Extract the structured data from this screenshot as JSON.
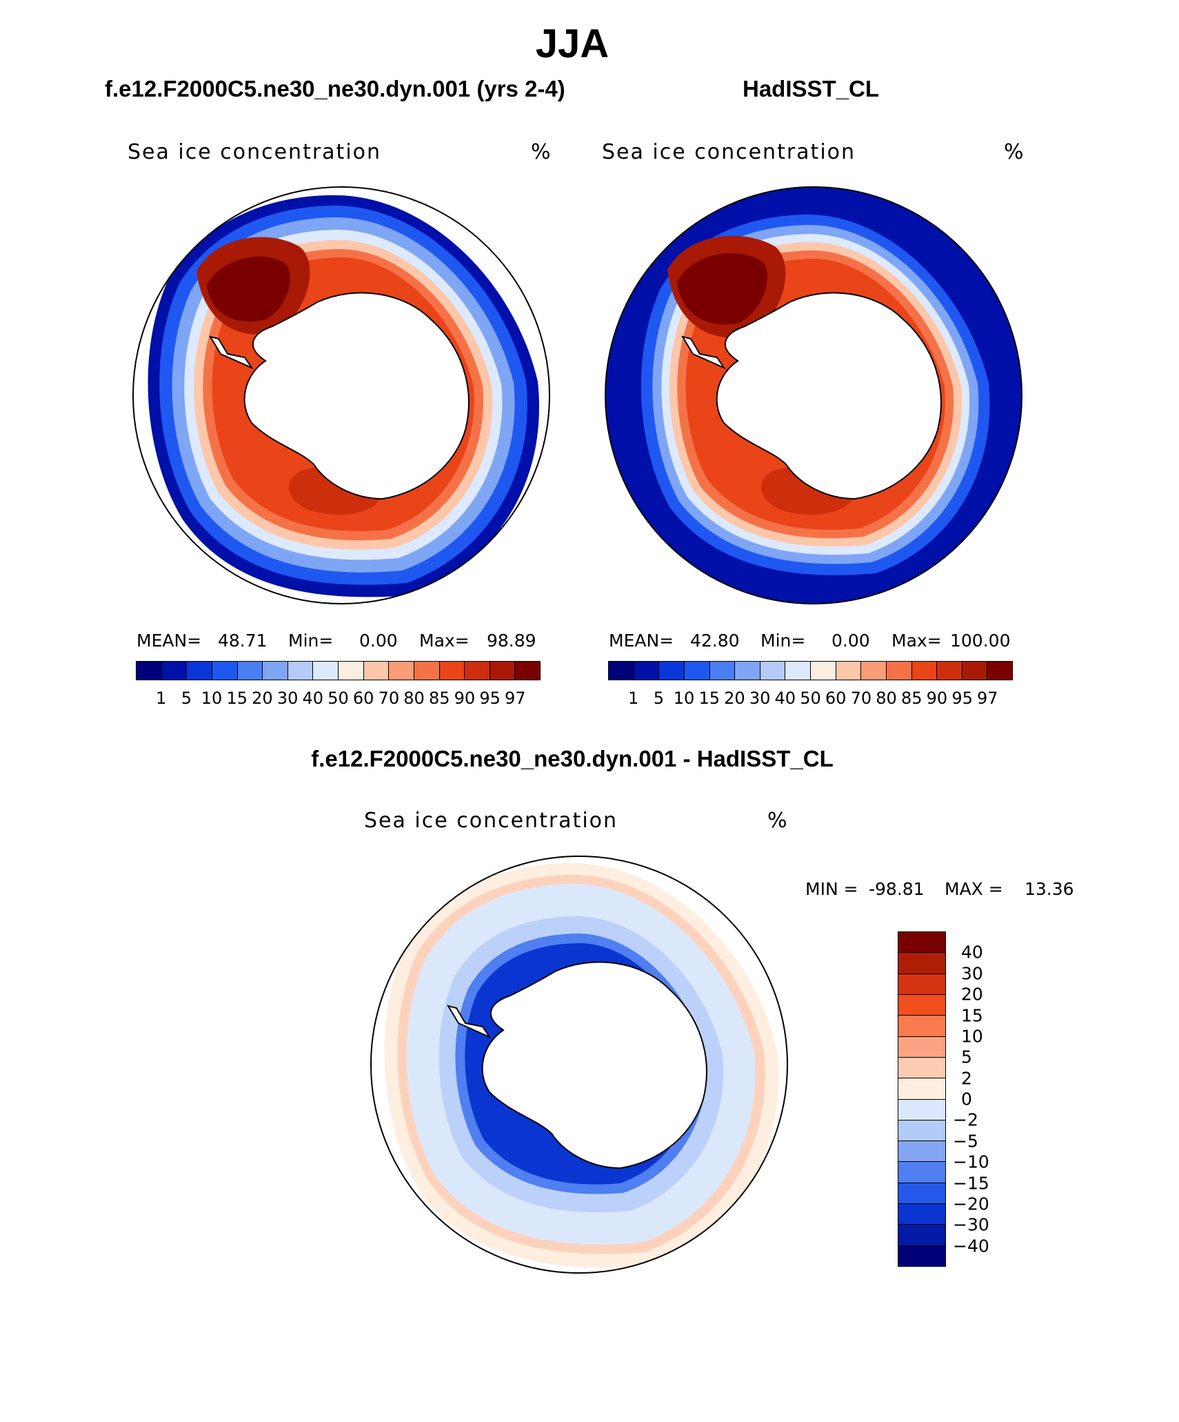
{
  "title": "JJA",
  "panels": [
    {
      "id": "model",
      "title": "f.e12.F2000C5.ne30_ne30.dyn.001 (yrs 2-4)",
      "variable": "Sea ice concentration",
      "units": "%",
      "mean_label": "MEAN=",
      "mean": "48.71",
      "min_label": "Min=",
      "min": "0.00",
      "max_label": "Max=",
      "max": "98.89"
    },
    {
      "id": "obs",
      "title": "HadISST_CL",
      "variable": "Sea ice concentration",
      "units": "%",
      "mean_label": "MEAN=",
      "mean": "42.80",
      "min_label": "Min=",
      "min": "0.00",
      "max_label": "Max=",
      "max": "100.00"
    }
  ],
  "abs_colorbar": {
    "levels": [
      "1",
      "5",
      "10",
      "15",
      "20",
      "30",
      "40",
      "50",
      "60",
      "70",
      "80",
      "85",
      "90",
      "95",
      "97"
    ],
    "colors": [
      "#00007a",
      "#0010a8",
      "#0a35d8",
      "#1f58f0",
      "#4a7ef2",
      "#7fa5f5",
      "#b6cbf8",
      "#dde9fc",
      "#fdeee2",
      "#fcc7aa",
      "#f99c78",
      "#f57248",
      "#ea4419",
      "#cd2f0c",
      "#a81a05",
      "#7a0000"
    ]
  },
  "diff_panel": {
    "title": "f.e12.F2000C5.ne30_ne30.dyn.001 - HadISST_CL",
    "variable": "Sea ice concentration",
    "units": "%",
    "min_label": "MIN =",
    "min": "-98.81",
    "max_label": "MAX =",
    "max": "13.36",
    "levels": [
      "40",
      "30",
      "20",
      "15",
      "10",
      "5",
      "2",
      "0",
      "-2",
      "-5",
      "-10",
      "-15",
      "-20",
      "-30",
      "-40"
    ],
    "colors": [
      "#7a0000",
      "#b01d05",
      "#d43411",
      "#f24f1e",
      "#fb7b50",
      "#fba383",
      "#fccbb4",
      "#fdeee0",
      "#dbe8fc",
      "#b3cbf8",
      "#85a6f4",
      "#4f7ff0",
      "#2458ea",
      "#0a35d0",
      "#031aa6",
      "#00007a"
    ]
  }
}
